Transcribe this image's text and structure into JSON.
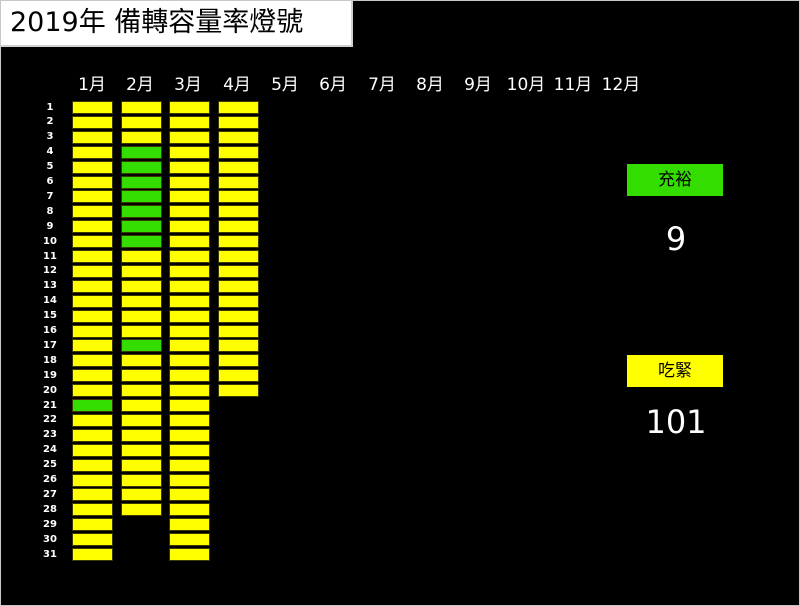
{
  "title": "2019年 備轉容量率燈號",
  "chart_data": {
    "type": "heatmap",
    "title": "2019年 備轉容量率燈號",
    "months": [
      "1月",
      "2月",
      "3月",
      "4月",
      "5月",
      "6月",
      "7月",
      "8月",
      "9月",
      "10月",
      "11月",
      "12月"
    ],
    "days": [
      "1",
      "2",
      "3",
      "4",
      "5",
      "6",
      "7",
      "8",
      "9",
      "10",
      "11",
      "12",
      "13",
      "14",
      "15",
      "16",
      "17",
      "18",
      "19",
      "20",
      "21",
      "22",
      "23",
      "24",
      "25",
      "26",
      "27",
      "28",
      "29",
      "30",
      "31"
    ],
    "categories": [
      "充裕",
      "吃緊"
    ],
    "colors": {
      "充裕": "#33dd00",
      "吃緊": "#ffff00"
    },
    "status_by_month": [
      [
        "吃緊",
        "吃緊",
        "吃緊",
        "吃緊",
        "吃緊",
        "吃緊",
        "吃緊",
        "吃緊",
        "吃緊",
        "吃緊",
        "吃緊",
        "吃緊",
        "吃緊",
        "吃緊",
        "吃緊",
        "吃緊",
        "吃緊",
        "吃緊",
        "吃緊",
        "吃緊",
        "充裕",
        "吃緊",
        "吃緊",
        "吃緊",
        "吃緊",
        "吃緊",
        "吃緊",
        "吃緊",
        "吃緊",
        "吃緊",
        "吃緊"
      ],
      [
        "吃緊",
        "吃緊",
        "吃緊",
        "充裕",
        "充裕",
        "充裕",
        "充裕",
        "充裕",
        "充裕",
        "充裕",
        "吃緊",
        "吃緊",
        "吃緊",
        "吃緊",
        "吃緊",
        "吃緊",
        "充裕",
        "吃緊",
        "吃緊",
        "吃緊",
        "吃緊",
        "吃緊",
        "吃緊",
        "吃緊",
        "吃緊",
        "吃緊",
        "吃緊",
        "吃緊"
      ],
      [
        "吃緊",
        "吃緊",
        "吃緊",
        "吃緊",
        "吃緊",
        "吃緊",
        "吃緊",
        "吃緊",
        "吃緊",
        "吃緊",
        "吃緊",
        "吃緊",
        "吃緊",
        "吃緊",
        "吃緊",
        "吃緊",
        "吃緊",
        "吃緊",
        "吃緊",
        "吃緊",
        "吃緊",
        "吃緊",
        "吃緊",
        "吃緊",
        "吃緊",
        "吃緊",
        "吃緊",
        "吃緊",
        "吃緊",
        "吃緊",
        "吃緊"
      ],
      [
        "吃緊",
        "吃緊",
        "吃緊",
        "吃緊",
        "吃緊",
        "吃緊",
        "吃緊",
        "吃緊",
        "吃緊",
        "吃緊",
        "吃緊",
        "吃緊",
        "吃緊",
        "吃緊",
        "吃緊",
        "吃緊",
        "吃緊",
        "吃緊",
        "吃緊",
        "吃緊"
      ],
      [],
      [],
      [],
      [],
      [],
      [],
      [],
      []
    ],
    "legend": [
      {
        "label": "充裕",
        "count": "9",
        "color": "#33dd00"
      },
      {
        "label": "吃緊",
        "count": "101",
        "color": "#ffff00"
      }
    ]
  }
}
